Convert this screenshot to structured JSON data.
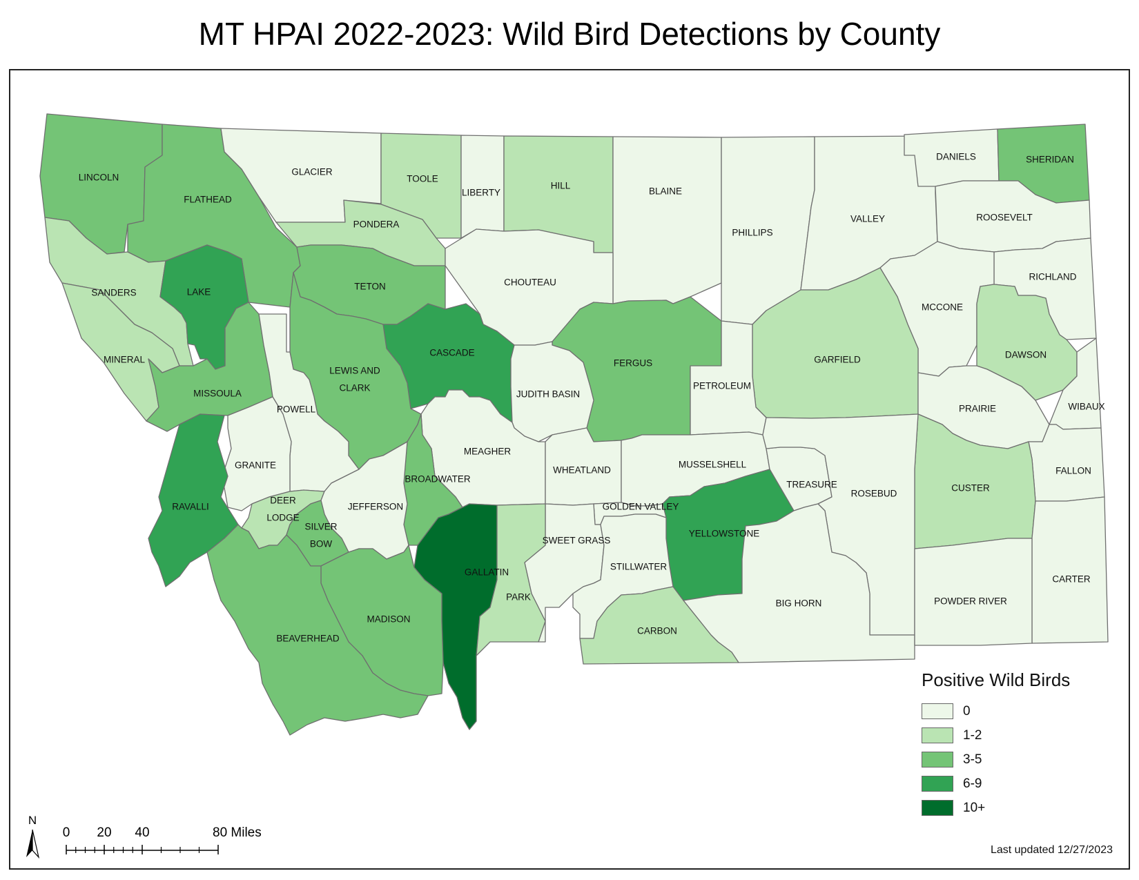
{
  "title": "MT HPAI 2022-2023: Wild Bird Detections by County",
  "legend": {
    "title": "Positive Wild Birds",
    "classes": [
      {
        "label": "0",
        "color": "#edf7e9"
      },
      {
        "label": "1-2",
        "color": "#bae4b3"
      },
      {
        "label": "3-5",
        "color": "#74c476"
      },
      {
        "label": "6-9",
        "color": "#31a354"
      },
      {
        "label": "10+",
        "color": "#006d2c"
      }
    ]
  },
  "counties": [
    {
      "name": "LINCOLN",
      "class": "3-5"
    },
    {
      "name": "FLATHEAD",
      "class": "3-5"
    },
    {
      "name": "GLACIER",
      "class": "0"
    },
    {
      "name": "TOOLE",
      "class": "1-2"
    },
    {
      "name": "LIBERTY",
      "class": "0"
    },
    {
      "name": "HILL",
      "class": "1-2"
    },
    {
      "name": "BLAINE",
      "class": "0"
    },
    {
      "name": "PHILLIPS",
      "class": "0"
    },
    {
      "name": "VALLEY",
      "class": "0"
    },
    {
      "name": "DANIELS",
      "class": "0"
    },
    {
      "name": "SHERIDAN",
      "class": "3-5"
    },
    {
      "name": "ROOSEVELT",
      "class": "0"
    },
    {
      "name": "PONDERA",
      "class": "1-2"
    },
    {
      "name": "SANDERS",
      "class": "1-2"
    },
    {
      "name": "LAKE",
      "class": "6-9"
    },
    {
      "name": "TETON",
      "class": "3-5"
    },
    {
      "name": "CHOUTEAU",
      "class": "0"
    },
    {
      "name": "RICHLAND",
      "class": "0"
    },
    {
      "name": "MCCONE",
      "class": "0"
    },
    {
      "name": "MINERAL",
      "class": "1-2"
    },
    {
      "name": "CASCADE",
      "class": "6-9"
    },
    {
      "name": "FERGUS",
      "class": "3-5"
    },
    {
      "name": "GARFIELD",
      "class": "1-2"
    },
    {
      "name": "DAWSON",
      "class": "1-2"
    },
    {
      "name": "LEWIS AND CLARK",
      "class": "3-5"
    },
    {
      "name": "MISSOULA",
      "class": "3-5"
    },
    {
      "name": "JUDITH BASIN",
      "class": "0"
    },
    {
      "name": "PETROLEUM",
      "class": "0"
    },
    {
      "name": "POWELL",
      "class": "0"
    },
    {
      "name": "PRAIRIE",
      "class": "0"
    },
    {
      "name": "WIBAUX",
      "class": "0"
    },
    {
      "name": "MEAGHER",
      "class": "0"
    },
    {
      "name": "GRANITE",
      "class": "0"
    },
    {
      "name": "WHEATLAND",
      "class": "0"
    },
    {
      "name": "MUSSELSHELL",
      "class": "0"
    },
    {
      "name": "FALLON",
      "class": "0"
    },
    {
      "name": "BROADWATER",
      "class": "3-5"
    },
    {
      "name": "TREASURE",
      "class": "0"
    },
    {
      "name": "CUSTER",
      "class": "1-2"
    },
    {
      "name": "ROSEBUD",
      "class": "0"
    },
    {
      "name": "RAVALLI",
      "class": "6-9"
    },
    {
      "name": "DEER LODGE",
      "class": "1-2"
    },
    {
      "name": "JEFFERSON",
      "class": "0"
    },
    {
      "name": "GOLDEN VALLEY",
      "class": "0"
    },
    {
      "name": "SILVER BOW",
      "class": "3-5"
    },
    {
      "name": "YELLOWSTONE",
      "class": "6-9"
    },
    {
      "name": "SWEET GRASS",
      "class": "0"
    },
    {
      "name": "STILLWATER",
      "class": "0"
    },
    {
      "name": "GALLATIN",
      "class": "10+"
    },
    {
      "name": "CARTER",
      "class": "0"
    },
    {
      "name": "PARK",
      "class": "1-2"
    },
    {
      "name": "BIG HORN",
      "class": "0"
    },
    {
      "name": "POWDER RIVER",
      "class": "0"
    },
    {
      "name": "MADISON",
      "class": "3-5"
    },
    {
      "name": "CARBON",
      "class": "1-2"
    },
    {
      "name": "BEAVERHEAD",
      "class": "3-5"
    }
  ],
  "north_arrow": "N",
  "scale_bar": {
    "ticks": [
      "0",
      "20",
      "40",
      "80 Miles"
    ]
  },
  "last_updated": "Last updated 12/27/2023"
}
